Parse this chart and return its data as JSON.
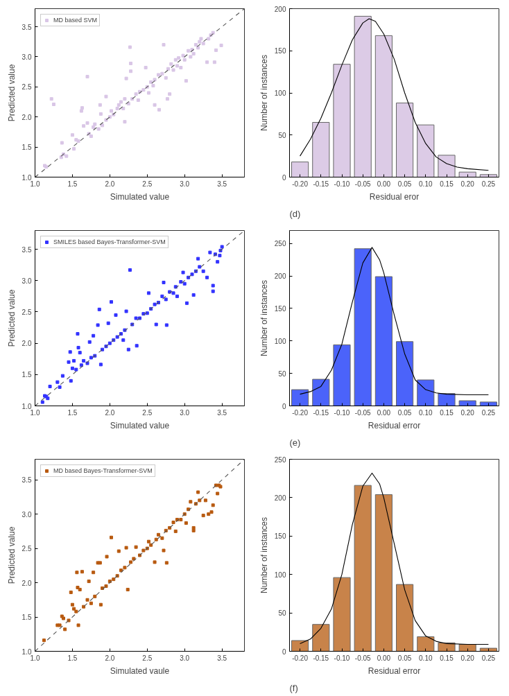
{
  "chart_data": [
    {
      "type": "scatter",
      "xlabel": "Simulated value",
      "ylabel": "Predicted value",
      "xlim": [
        1.0,
        3.8
      ],
      "ylim": [
        1.0,
        3.8
      ],
      "xticks": [
        {
          "value": 1,
          "label": "1.0"
        },
        1.5,
        {
          "value": 2,
          "label": "2.0"
        },
        2.5,
        {
          "value": 3,
          "label": "3.0"
        },
        3.5
      ],
      "yticks": [
        {
          "value": 1,
          "label": "1.0"
        },
        1.5,
        {
          "value": 2,
          "label": "2.0"
        },
        2.5,
        {
          "value": 3,
          "label": "3.0"
        },
        3.5
      ],
      "grid": false,
      "legend": "top left",
      "series": [
        {
          "name": "MD based SVM",
          "color": "#d9c6e6",
          "type": "scatter",
          "marker": "square",
          "x": [
            1.13,
            1.15,
            1.22,
            1.25,
            1.35,
            1.36,
            1.38,
            1.42,
            1.5,
            1.52,
            1.55,
            1.58,
            1.62,
            1.63,
            1.65,
            1.7,
            1.7,
            1.72,
            1.75,
            1.78,
            1.8,
            1.85,
            1.87,
            1.88,
            1.9,
            1.95,
            1.95,
            2.0,
            2.02,
            2.05,
            2.1,
            2.12,
            2.15,
            2.18,
            2.2,
            2.2,
            2.22,
            2.25,
            2.27,
            2.28,
            2.28,
            2.3,
            2.35,
            2.38,
            2.4,
            2.45,
            2.48,
            2.5,
            2.52,
            2.55,
            2.58,
            2.6,
            2.6,
            2.65,
            2.66,
            2.7,
            2.72,
            2.75,
            2.77,
            2.78,
            2.8,
            2.82,
            2.85,
            2.88,
            2.9,
            2.92,
            2.95,
            2.98,
            3.0,
            3.02,
            3.05,
            3.08,
            3.1,
            3.12,
            3.15,
            3.18,
            3.2,
            3.22,
            3.25,
            3.3,
            3.32,
            3.35,
            3.38,
            3.4,
            3.42,
            3.49
          ],
          "values": [
            1.19,
            1.17,
            2.3,
            2.21,
            1.33,
            1.57,
            1.38,
            1.35,
            1.7,
            1.47,
            1.62,
            1.6,
            2.1,
            2.15,
            1.85,
            2.67,
            1.9,
            1.72,
            1.68,
            1.83,
            1.88,
            1.8,
            2.2,
            2.05,
            1.86,
            2.34,
            1.95,
            2.0,
            2.1,
            2.04,
            2.14,
            2.2,
            2.25,
            2.14,
            1.92,
            2.3,
            2.64,
            2.22,
            3.16,
            2.89,
            2.76,
            2.3,
            2.38,
            2.28,
            2.42,
            2.45,
            2.82,
            2.5,
            2.4,
            2.58,
            2.52,
            2.62,
            2.2,
            2.7,
            2.12,
            2.72,
            3.2,
            2.65,
            2.3,
            2.8,
            2.38,
            2.88,
            2.78,
            2.95,
            2.85,
            2.98,
            2.82,
            3.02,
            2.95,
            2.6,
            3.1,
            3.0,
            3.12,
            3.05,
            3.2,
            3.15,
            3.25,
            3.3,
            3.22,
            2.91,
            3.3,
            3.36,
            3.4,
            2.91,
            3.11,
            3.19
          ]
        },
        {
          "type": "line",
          "color": "#555555",
          "line_style": "dashed",
          "x": [
            1.0,
            3.8
          ],
          "values": [
            1.0,
            3.8
          ]
        }
      ]
    },
    {
      "type": "histogram",
      "xlabel": "Residual eror",
      "ylabel": "Number of instances",
      "bins": [
        -0.225,
        -0.175,
        -0.125,
        -0.075,
        -0.025,
        0.025,
        0.075,
        0.125,
        0.175,
        0.225,
        0.275
      ],
      "values": [
        18,
        65,
        134,
        191,
        168,
        88,
        62,
        26,
        6,
        3
      ],
      "color": "#dccbe6",
      "xlim": [
        -0.225,
        0.275
      ],
      "ylim": [
        0,
        200
      ],
      "xticks": [
        {
          "value": -0.2,
          "label": "-0.20"
        },
        -0.15,
        {
          "value": -0.1,
          "label": "-0.10"
        },
        -0.05,
        {
          "value": 0,
          "label": "0.00"
        },
        0.05,
        {
          "value": 0.1,
          "label": "0.10"
        },
        0.15,
        {
          "value": 0.2,
          "label": "0.20"
        },
        0.25
      ],
      "yticks": [
        0,
        50,
        100,
        150,
        200
      ],
      "grid": false,
      "annotations": [
        "(d)"
      ],
      "series": [
        {
          "type": "line",
          "color": "#000000",
          "x": [
            -0.2,
            -0.175,
            -0.15,
            -0.125,
            -0.1,
            -0.075,
            -0.05,
            -0.035,
            -0.02,
            0.0,
            0.025,
            0.05,
            0.075,
            0.1,
            0.125,
            0.15,
            0.175,
            0.2,
            0.25
          ],
          "values": [
            25,
            45,
            70,
            100,
            133,
            163,
            183,
            188,
            185,
            170,
            140,
            100,
            65,
            40,
            24,
            16,
            12,
            10,
            8
          ]
        }
      ]
    },
    {
      "type": "scatter",
      "xlabel": "Simulated value",
      "ylabel": "Predicted value",
      "xlim": [
        1.0,
        3.8
      ],
      "ylim": [
        1.0,
        3.8
      ],
      "xticks": [
        {
          "value": 1,
          "label": "1.0"
        },
        1.5,
        {
          "value": 2,
          "label": "2.0"
        },
        2.5,
        {
          "value": 3,
          "label": "3.0"
        },
        3.5
      ],
      "yticks": [
        {
          "value": 1,
          "label": "1.0"
        },
        1.5,
        {
          "value": 2,
          "label": "2.0"
        },
        2.5,
        {
          "value": 3,
          "label": "3.0"
        },
        3.5
      ],
      "grid": false,
      "legend": "top left",
      "series": [
        {
          "name": "SMILES based Bayes-Transformer-SVM",
          "color": "#3333ff",
          "type": "scatter",
          "marker": "square",
          "x": [
            1.1,
            1.13,
            1.15,
            1.17,
            1.2,
            1.3,
            1.33,
            1.37,
            1.45,
            1.47,
            1.48,
            1.5,
            1.52,
            1.55,
            1.57,
            1.58,
            1.6,
            1.62,
            1.65,
            1.7,
            1.73,
            1.75,
            1.78,
            1.8,
            1.84,
            1.86,
            1.88,
            1.9,
            1.95,
            1.98,
            2.0,
            2.02,
            2.05,
            2.08,
            2.1,
            2.15,
            2.18,
            2.2,
            2.22,
            2.25,
            2.27,
            2.3,
            2.35,
            2.36,
            2.4,
            2.45,
            2.5,
            2.52,
            2.55,
            2.6,
            2.62,
            2.65,
            2.7,
            2.72,
            2.75,
            2.76,
            2.8,
            2.85,
            2.88,
            2.9,
            2.95,
            2.98,
            3.0,
            3.03,
            3.05,
            3.1,
            3.12,
            3.15,
            3.18,
            3.2,
            3.25,
            3.3,
            3.34,
            3.38,
            3.38,
            3.41,
            3.44,
            3.47,
            3.48,
            3.5
          ],
          "values": [
            1.06,
            1.16,
            1.15,
            1.12,
            1.31,
            1.38,
            1.3,
            1.48,
            1.7,
            1.86,
            1.4,
            1.6,
            1.72,
            1.58,
            2.15,
            1.93,
            1.85,
            1.65,
            1.72,
            1.68,
            2.02,
            1.77,
            2.12,
            1.8,
            2.29,
            2.54,
            1.66,
            1.9,
            1.95,
            2.32,
            2.0,
            2.66,
            2.05,
            2.45,
            2.1,
            2.15,
            2.05,
            2.21,
            2.51,
            1.9,
            3.17,
            2.3,
            2.4,
            1.96,
            2.4,
            2.47,
            2.48,
            2.8,
            2.55,
            2.62,
            2.3,
            2.65,
            2.75,
            2.97,
            2.7,
            2.29,
            2.82,
            2.8,
            2.9,
            2.75,
            2.98,
            3.13,
            2.95,
            2.64,
            3.05,
            3.1,
            2.77,
            3.15,
            3.35,
            3.22,
            3.15,
            3.05,
            3.45,
            2.83,
            2.92,
            3.42,
            3.3,
            3.4,
            3.48,
            3.54
          ]
        },
        {
          "type": "line",
          "color": "#555555",
          "line_style": "dashed",
          "x": [
            1.0,
            3.8
          ],
          "values": [
            1.0,
            3.8
          ]
        }
      ]
    },
    {
      "type": "histogram",
      "xlabel": "Residual error",
      "ylabel": "Number of instances",
      "bins": [
        -0.225,
        -0.175,
        -0.125,
        -0.075,
        -0.025,
        0.025,
        0.075,
        0.125,
        0.175,
        0.225,
        0.275
      ],
      "values": [
        25,
        41,
        94,
        242,
        199,
        99,
        40,
        19,
        8,
        6
      ],
      "color": "#4b63fa",
      "xlim": [
        -0.225,
        0.275
      ],
      "ylim": [
        0,
        270
      ],
      "xticks": [
        {
          "value": -0.2,
          "label": "-0.20"
        },
        -0.15,
        {
          "value": -0.1,
          "label": "-0.10"
        },
        -0.05,
        {
          "value": 0,
          "label": "0.00"
        },
        0.05,
        {
          "value": 0.1,
          "label": "0.10"
        },
        0.15,
        {
          "value": 0.2,
          "label": "0.20"
        },
        0.25
      ],
      "yticks": [
        0,
        50,
        100,
        150,
        200,
        250
      ],
      "grid": false,
      "annotations": [
        "(e)"
      ],
      "series": [
        {
          "type": "line",
          "color": "#000000",
          "x": [
            -0.2,
            -0.175,
            -0.15,
            -0.125,
            -0.1,
            -0.075,
            -0.05,
            -0.028,
            -0.01,
            0.0,
            0.025,
            0.05,
            0.075,
            0.1,
            0.125,
            0.15,
            0.2,
            0.25
          ],
          "values": [
            18,
            22,
            30,
            55,
            95,
            160,
            220,
            244,
            225,
            205,
            140,
            80,
            40,
            25,
            20,
            18,
            17,
            17
          ]
        }
      ]
    },
    {
      "type": "scatter",
      "xlabel": "Simulated vaule",
      "ylabel": "Predicted value",
      "xlim": [
        1.0,
        3.8
      ],
      "ylim": [
        1.0,
        3.8
      ],
      "xticks": [
        {
          "value": 1,
          "label": "1.0"
        },
        1.5,
        {
          "value": 2,
          "label": "2.0"
        },
        2.5,
        {
          "value": 3,
          "label": "3.0"
        },
        3.5
      ],
      "yticks": [
        {
          "value": 1,
          "label": "1.0"
        },
        1.5,
        {
          "value": 2,
          "label": "2.0"
        },
        2.5,
        {
          "value": 3,
          "label": "3.0"
        },
        3.5
      ],
      "grid": false,
      "legend": "top left",
      "series": [
        {
          "name": "MD based Bayes-Transformer-SVM",
          "color": "#b85a10",
          "type": "scatter",
          "marker": "square",
          "x": [
            1.12,
            1.3,
            1.33,
            1.36,
            1.38,
            1.4,
            1.45,
            1.48,
            1.5,
            1.52,
            1.55,
            1.56,
            1.57,
            1.58,
            1.6,
            1.63,
            1.65,
            1.7,
            1.72,
            1.75,
            1.78,
            1.8,
            1.84,
            1.87,
            1.88,
            1.9,
            1.95,
            1.96,
            2.0,
            2.02,
            2.05,
            2.1,
            2.12,
            2.15,
            2.2,
            2.22,
            2.24,
            2.28,
            2.32,
            2.35,
            2.4,
            2.45,
            2.5,
            2.52,
            2.55,
            2.6,
            2.62,
            2.65,
            2.7,
            2.72,
            2.75,
            2.76,
            2.8,
            2.85,
            2.88,
            2.9,
            2.95,
            3.0,
            3.02,
            3.05,
            3.08,
            3.12,
            3.12,
            3.15,
            3.18,
            3.2,
            3.25,
            3.28,
            3.32,
            3.36,
            3.38,
            3.42,
            3.44,
            3.46,
            3.48
          ],
          "values": [
            1.16,
            1.38,
            1.38,
            1.51,
            1.48,
            1.32,
            1.45,
            1.86,
            1.68,
            1.62,
            1.58,
            2.15,
            1.93,
            1.38,
            1.9,
            2.16,
            1.65,
            1.75,
            2.02,
            1.7,
            2.15,
            1.8,
            2.29,
            2.29,
            1.68,
            1.92,
            1.95,
            2.38,
            2.02,
            2.66,
            2.05,
            2.1,
            2.46,
            2.18,
            2.22,
            2.51,
            1.9,
            2.3,
            2.35,
            2.52,
            2.4,
            2.47,
            2.5,
            2.6,
            2.55,
            2.3,
            2.63,
            2.7,
            2.65,
            2.47,
            2.76,
            2.29,
            2.8,
            2.88,
            2.75,
            2.92,
            2.92,
            3.0,
            2.87,
            3.07,
            3.18,
            2.76,
            2.8,
            3.15,
            3.32,
            3.2,
            2.98,
            3.2,
            3.0,
            3.03,
            3.13,
            3.42,
            3.3,
            3.42,
            3.4
          ]
        },
        {
          "type": "line",
          "color": "#555555",
          "line_style": "dashed",
          "x": [
            1.0,
            3.8
          ],
          "values": [
            1.0,
            3.8
          ]
        }
      ]
    },
    {
      "type": "histogram",
      "xlabel": "Residual error",
      "ylabel": "Number of instances",
      "bins": [
        -0.225,
        -0.175,
        -0.125,
        -0.075,
        -0.025,
        0.025,
        0.075,
        0.125,
        0.175,
        0.225,
        0.275
      ],
      "values": [
        14,
        35,
        96,
        216,
        204,
        87,
        19,
        11,
        9,
        4
      ],
      "color": "#c8834a",
      "xlim": [
        -0.225,
        0.275
      ],
      "ylim": [
        0,
        250
      ],
      "xticks": [
        {
          "value": -0.2,
          "label": "-0.20"
        },
        -0.15,
        {
          "value": -0.1,
          "label": "-0.10"
        },
        -0.05,
        {
          "value": 0,
          "label": "0.00"
        },
        0.05,
        {
          "value": 0.1,
          "label": "0.10"
        },
        0.15,
        {
          "value": 0.2,
          "label": "0.20"
        },
        0.25
      ],
      "yticks": [
        0,
        50,
        100,
        150,
        200,
        250
      ],
      "grid": false,
      "annotations": [
        "(f)"
      ],
      "series": [
        {
          "type": "line",
          "color": "#000000",
          "x": [
            -0.2,
            -0.175,
            -0.15,
            -0.125,
            -0.1,
            -0.075,
            -0.05,
            -0.028,
            -0.01,
            0.0,
            0.025,
            0.05,
            0.075,
            0.1,
            0.125,
            0.15,
            0.2,
            0.25
          ],
          "values": [
            10,
            16,
            30,
            55,
            100,
            165,
            215,
            232,
            218,
            200,
            140,
            80,
            40,
            20,
            13,
            10,
            9,
            9
          ]
        }
      ]
    }
  ]
}
